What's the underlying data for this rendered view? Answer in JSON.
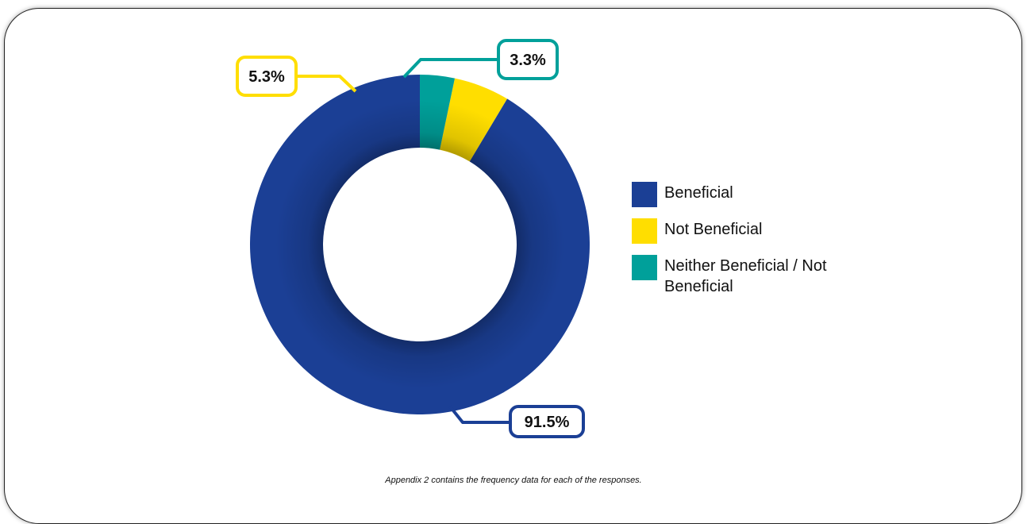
{
  "chart_data": {
    "type": "pie",
    "categories": [
      "Beneficial",
      "Not Beneficial",
      "Neither Beneficial / Not Beneficial"
    ],
    "values": [
      91.5,
      5.3,
      3.3
    ],
    "value_labels": [
      "91.5%",
      "5.3%",
      "3.3%"
    ],
    "colors": [
      "#1b3f95",
      "#ffde00",
      "#00a09a"
    ],
    "donut": true,
    "legend_position": "right"
  },
  "legend": {
    "items": [
      {
        "label": "Beneficial",
        "color": "#1b3f95"
      },
      {
        "label": "Not Beneficial",
        "color": "#ffde00"
      },
      {
        "label": "Neither Beneficial / Not Beneficial",
        "color": "#00a09a"
      }
    ]
  },
  "footnote": "Appendix 2 contains the frequency data for each of the responses."
}
